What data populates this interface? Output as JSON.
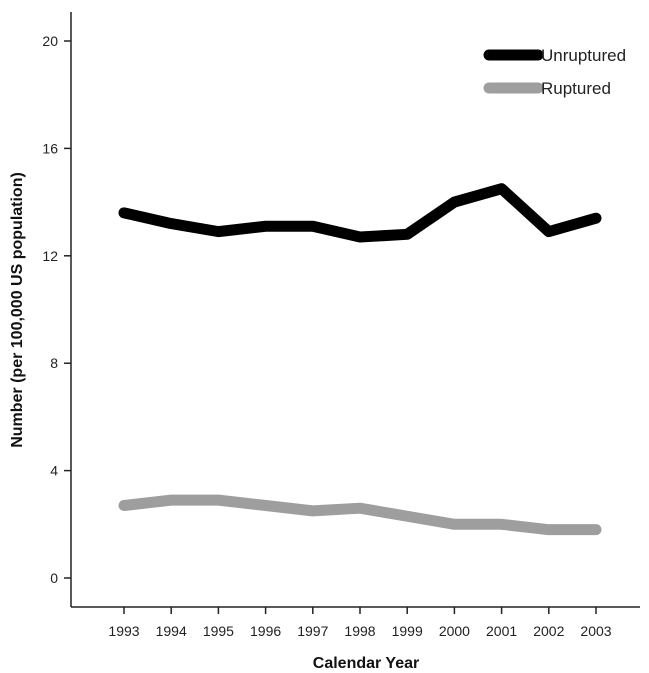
{
  "chart_data": {
    "type": "line",
    "title": "",
    "xlabel": "Calendar Year",
    "ylabel": "Number (per 100,000 US population)",
    "x": [
      "1993",
      "1994",
      "1995",
      "1996",
      "1997",
      "1998",
      "1999",
      "2000",
      "2001",
      "2002",
      "2003"
    ],
    "ylim": [
      0,
      20
    ],
    "yticks": [
      "0",
      "4",
      "8",
      "12",
      "16",
      "20"
    ],
    "grid": false,
    "legend_position": "top-right",
    "series": [
      {
        "name": "Unruptured",
        "color": "#000000",
        "values": [
          13.6,
          13.2,
          12.9,
          13.1,
          13.1,
          12.7,
          12.8,
          14.0,
          14.5,
          12.9,
          13.4
        ]
      },
      {
        "name": "Ruptured",
        "color": "#9e9e9e",
        "values": [
          2.7,
          2.9,
          2.9,
          2.7,
          2.5,
          2.6,
          2.3,
          2.0,
          2.0,
          1.8,
          1.8
        ]
      }
    ]
  }
}
